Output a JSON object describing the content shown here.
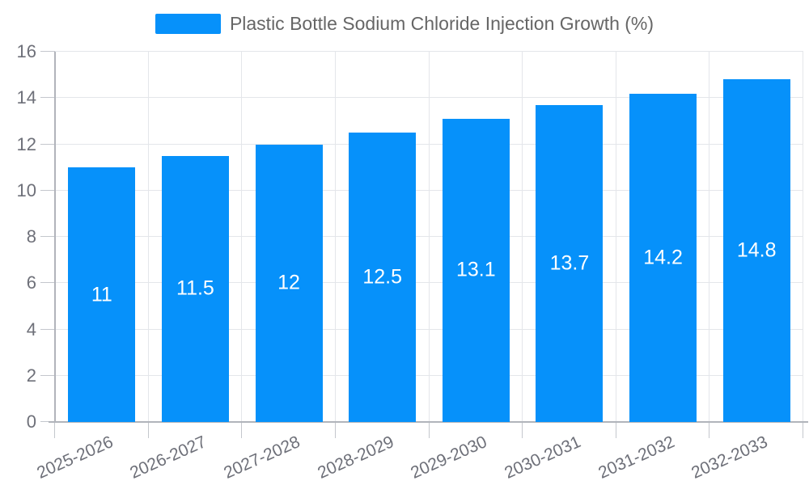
{
  "chart_data": {
    "type": "bar",
    "title": "Plastic Bottle Sodium Chloride Injection Growth (%)",
    "legend_entries": [
      "Plastic Bottle Sodium Chloride Injection Growth (%)"
    ],
    "legend_position": "top-center",
    "categories": [
      "2025-2026",
      "2026-2027",
      "2027-2028",
      "2028-2029",
      "2029-2030",
      "2030-2031",
      "2031-2032",
      "2032-2033"
    ],
    "values": [
      11,
      11.5,
      12,
      12.5,
      13.1,
      13.7,
      14.2,
      14.8
    ],
    "value_label_position": "inside-center",
    "xlabel": "",
    "ylabel": "",
    "ylim": [
      0,
      16
    ],
    "yticks": [
      0,
      2,
      4,
      6,
      8,
      10,
      12,
      14,
      16
    ],
    "grid": true,
    "x_tick_label_rotation_deg": -24
  },
  "style": {
    "bar_color": "#0691fa",
    "value_label_color": "#ffffff",
    "axis_label_color": "#6e7079",
    "legend_text_color": "#666666",
    "grid_color": "#e4e6ea",
    "tick_color": "#c4c7cd",
    "axis_line_color": "#b1b4bb",
    "background_color": "#ffffff"
  }
}
